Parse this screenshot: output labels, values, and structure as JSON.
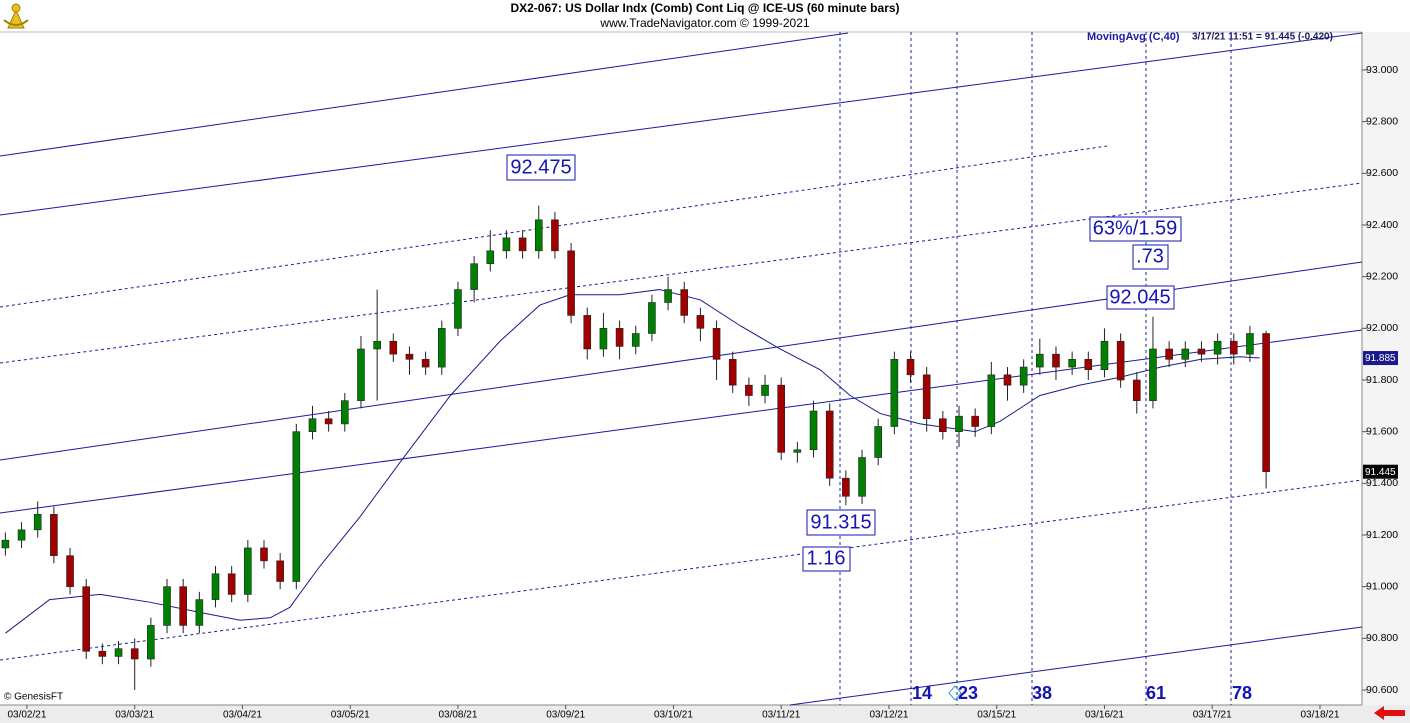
{
  "chart_data": {
    "type": "candlestick",
    "title": "DX2-067:  US Dollar Indx (Comb) Cont Liq @ ICE-US  (60 minute bars)",
    "subtitle": "www.TradeNavigator.com © 1999-2021",
    "last_quote": "3/17/21 11:51 = 91.445 (-0.420)",
    "copyright": "© GenesisFT",
    "up_color": "#008000",
    "down_color": "#a00000",
    "x": [
      -0.2,
      -0.05,
      0.1,
      0.25,
      0.4,
      0.55,
      0.7,
      0.85,
      1,
      1.15,
      1.3,
      1.45,
      1.6,
      1.75,
      1.9,
      2.05,
      2.2,
      2.35,
      2.5,
      2.65,
      2.8,
      2.95,
      3.1,
      3.25,
      3.4,
      3.55,
      3.7,
      3.85,
      4,
      4.15,
      4.3,
      4.45,
      4.6,
      4.75,
      4.9,
      5.05,
      5.2,
      5.35,
      5.5,
      5.65,
      5.8,
      5.95,
      6.1,
      6.25,
      6.4,
      6.55,
      6.7,
      6.85,
      7,
      7.15,
      7.3,
      7.45,
      7.6,
      7.75,
      7.9,
      8.05,
      8.2,
      8.35,
      8.5,
      8.65,
      8.8,
      8.95,
      9.1,
      9.25,
      9.4,
      9.55,
      9.7,
      9.85,
      10,
      10.15,
      10.3,
      10.45,
      10.6,
      10.75,
      10.9,
      11.05,
      11.2,
      11.35,
      11.5
    ],
    "open": [
      91.15,
      91.18,
      91.22,
      91.28,
      91.12,
      91.0,
      90.75,
      90.73,
      90.76,
      90.72,
      90.85,
      91.0,
      90.85,
      90.95,
      91.05,
      90.97,
      91.15,
      91.1,
      91.02,
      91.6,
      91.65,
      91.63,
      91.72,
      91.92,
      91.95,
      91.9,
      91.88,
      91.85,
      92.0,
      92.15,
      92.25,
      92.3,
      92.35,
      92.3,
      92.42,
      92.3,
      92.05,
      91.92,
      92.0,
      91.93,
      91.98,
      92.1,
      92.15,
      92.05,
      92.0,
      91.88,
      91.78,
      91.74,
      91.78,
      91.52,
      91.53,
      91.68,
      91.42,
      91.35,
      91.5,
      91.62,
      91.88,
      91.82,
      91.65,
      91.6,
      91.66,
      91.62,
      91.82,
      91.78,
      91.85,
      91.9,
      91.85,
      91.88,
      91.84,
      91.95,
      91.8,
      91.72,
      91.92,
      91.88,
      91.92,
      91.9,
      91.95,
      91.9,
      91.98
    ],
    "high": [
      91.21,
      91.25,
      91.33,
      91.31,
      91.15,
      91.03,
      90.78,
      90.79,
      90.8,
      90.88,
      91.03,
      91.03,
      90.98,
      91.08,
      91.08,
      91.18,
      91.18,
      91.13,
      91.63,
      91.7,
      91.68,
      91.75,
      91.97,
      92.15,
      91.98,
      91.93,
      91.91,
      92.03,
      92.18,
      92.28,
      92.38,
      92.38,
      92.38,
      92.475,
      92.45,
      92.33,
      92.08,
      92.06,
      92.03,
      92.01,
      92.13,
      92.2,
      92.18,
      92.08,
      92.03,
      91.91,
      91.81,
      91.82,
      91.81,
      91.56,
      91.72,
      91.71,
      91.45,
      91.53,
      91.65,
      91.91,
      91.91,
      91.85,
      91.68,
      91.7,
      91.69,
      91.87,
      91.85,
      91.88,
      91.96,
      91.93,
      91.91,
      91.91,
      92.0,
      91.98,
      91.83,
      92.045,
      91.95,
      91.95,
      91.95,
      91.98,
      91.98,
      92.01,
      91.99
    ],
    "low": [
      91.12,
      91.15,
      91.19,
      91.09,
      90.97,
      90.72,
      90.7,
      90.7,
      90.6,
      90.69,
      90.82,
      90.82,
      90.82,
      90.92,
      90.94,
      90.94,
      91.07,
      90.99,
      90.99,
      91.57,
      91.6,
      91.6,
      91.69,
      91.72,
      91.87,
      91.82,
      91.82,
      91.82,
      91.97,
      92.1,
      92.22,
      92.27,
      92.27,
      92.27,
      92.27,
      92.02,
      91.88,
      91.89,
      91.88,
      91.9,
      91.95,
      92.07,
      92.02,
      91.95,
      91.8,
      91.75,
      91.7,
      91.71,
      91.49,
      91.48,
      91.5,
      91.39,
      91.315,
      91.32,
      91.47,
      91.59,
      91.79,
      91.6,
      91.57,
      91.54,
      91.58,
      91.59,
      91.72,
      91.75,
      91.82,
      91.8,
      91.82,
      91.8,
      91.81,
      91.77,
      91.67,
      91.69,
      91.85,
      91.85,
      91.87,
      91.86,
      91.86,
      91.87,
      91.38
    ],
    "close": [
      91.18,
      91.22,
      91.28,
      91.12,
      91.0,
      90.75,
      90.73,
      90.76,
      90.72,
      90.85,
      91.0,
      90.85,
      90.95,
      91.05,
      90.97,
      91.15,
      91.1,
      91.02,
      91.6,
      91.65,
      91.63,
      91.72,
      91.92,
      91.95,
      91.9,
      91.88,
      91.85,
      92.0,
      92.15,
      92.25,
      92.3,
      92.35,
      92.3,
      92.42,
      92.3,
      92.05,
      91.92,
      92.0,
      91.93,
      91.98,
      92.1,
      92.15,
      92.05,
      92.0,
      91.88,
      91.78,
      91.74,
      91.78,
      91.52,
      91.53,
      91.68,
      91.42,
      91.35,
      91.5,
      91.62,
      91.88,
      91.82,
      91.65,
      91.6,
      91.66,
      91.62,
      91.82,
      91.78,
      91.85,
      91.9,
      91.85,
      91.88,
      91.84,
      91.95,
      91.8,
      91.72,
      91.92,
      91.88,
      91.92,
      91.9,
      91.95,
      91.9,
      91.98,
      91.445
    ],
    "series": [
      {
        "name": "MovingAvg (C,40)",
        "color": "#1a1a8c",
        "x": [
          -0.2,
          0.21,
          0.68,
          1.14,
          1.61,
          1.98,
          2.26,
          2.44,
          2.72,
          3.09,
          3.46,
          3.93,
          4.39,
          4.76,
          5.04,
          5.5,
          5.87,
          6.25,
          6.62,
          6.99,
          7.36,
          7.64,
          7.92,
          8.29,
          8.8,
          9.03,
          9.4,
          9.77,
          10.14,
          10.52,
          10.89,
          11.26,
          11.44
        ],
        "values": [
          90.82,
          90.95,
          90.97,
          90.94,
          90.9,
          90.87,
          90.88,
          90.92,
          91.08,
          91.27,
          91.48,
          91.74,
          91.95,
          92.09,
          92.13,
          92.13,
          92.15,
          92.11,
          92.01,
          91.92,
          91.84,
          91.74,
          91.67,
          91.63,
          91.6,
          91.64,
          91.74,
          91.78,
          91.81,
          91.85,
          91.88,
          91.89,
          91.885
        ]
      }
    ],
    "price_flags": [
      {
        "value": 91.885,
        "label": "91.885",
        "color": "#1a1a8c"
      },
      {
        "value": 91.445,
        "label": "91.445",
        "color": "#000000"
      }
    ],
    "annotations": [
      "92.475",
      "63%/1.59",
      ".73",
      "92.045",
      "91.315",
      "1.16"
    ],
    "cycle_labels": [
      "14",
      "23",
      "38",
      "61",
      "78"
    ],
    "xlim": [
      -0.25,
      12.39
    ],
    "xticks": [
      {
        "value": 0,
        "label": "03/02/21"
      },
      {
        "value": 1,
        "label": "03/03/21"
      },
      {
        "value": 2,
        "label": "03/04/21"
      },
      {
        "value": 3,
        "label": "03/05/21"
      },
      {
        "value": 4,
        "label": "03/08/21"
      },
      {
        "value": 5,
        "label": "03/09/21"
      },
      {
        "value": 6,
        "label": "03/10/21"
      },
      {
        "value": 7,
        "label": "03/11/21"
      },
      {
        "value": 8,
        "label": "03/12/21"
      },
      {
        "value": 9,
        "label": "03/15/21"
      },
      {
        "value": 10,
        "label": "03/16/21"
      },
      {
        "value": 11,
        "label": "03/17/21"
      },
      {
        "value": 12,
        "label": "03/18/21"
      }
    ],
    "ylim": [
      90.542,
      93.147
    ],
    "yticks": [
      {
        "value": 90.6,
        "label": "90.600"
      },
      {
        "value": 90.8,
        "label": "90.800"
      },
      {
        "value": 91,
        "label": "91.000"
      },
      {
        "value": 91.2,
        "label": "91.200"
      },
      {
        "value": 91.4,
        "label": "91.400"
      },
      {
        "value": 91.6,
        "label": "91.600"
      },
      {
        "value": 91.8,
        "label": "91.800"
      },
      {
        "value": 92,
        "label": "92.000"
      },
      {
        "value": 92.2,
        "label": "92.200"
      },
      {
        "value": 92.4,
        "label": "92.400"
      },
      {
        "value": 92.6,
        "label": "92.600"
      },
      {
        "value": 92.8,
        "label": "92.800"
      },
      {
        "value": 93,
        "label": "93.000"
      }
    ]
  }
}
